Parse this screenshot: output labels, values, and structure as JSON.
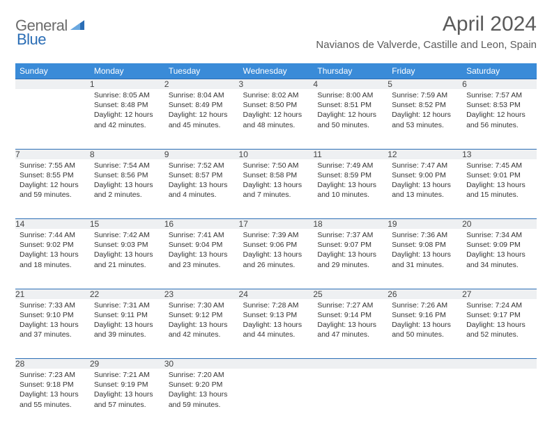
{
  "brand": {
    "word1": "General",
    "word2": "Blue"
  },
  "title": "April 2024",
  "location": "Navianos de Valverde, Castille and Leon, Spain",
  "colors": {
    "header_bg": "#3a8bd8",
    "border": "#2a6db5",
    "daynum_bg": "#eef0f2",
    "text": "#333333",
    "title_text": "#5a5a5a"
  },
  "weekdays": [
    "Sunday",
    "Monday",
    "Tuesday",
    "Wednesday",
    "Thursday",
    "Friday",
    "Saturday"
  ],
  "weeks": [
    [
      null,
      {
        "n": "1",
        "sr": "8:05 AM",
        "ss": "8:48 PM",
        "dl": "12 hours and 42 minutes."
      },
      {
        "n": "2",
        "sr": "8:04 AM",
        "ss": "8:49 PM",
        "dl": "12 hours and 45 minutes."
      },
      {
        "n": "3",
        "sr": "8:02 AM",
        "ss": "8:50 PM",
        "dl": "12 hours and 48 minutes."
      },
      {
        "n": "4",
        "sr": "8:00 AM",
        "ss": "8:51 PM",
        "dl": "12 hours and 50 minutes."
      },
      {
        "n": "5",
        "sr": "7:59 AM",
        "ss": "8:52 PM",
        "dl": "12 hours and 53 minutes."
      },
      {
        "n": "6",
        "sr": "7:57 AM",
        "ss": "8:53 PM",
        "dl": "12 hours and 56 minutes."
      }
    ],
    [
      {
        "n": "7",
        "sr": "7:55 AM",
        "ss": "8:55 PM",
        "dl": "12 hours and 59 minutes."
      },
      {
        "n": "8",
        "sr": "7:54 AM",
        "ss": "8:56 PM",
        "dl": "13 hours and 2 minutes."
      },
      {
        "n": "9",
        "sr": "7:52 AM",
        "ss": "8:57 PM",
        "dl": "13 hours and 4 minutes."
      },
      {
        "n": "10",
        "sr": "7:50 AM",
        "ss": "8:58 PM",
        "dl": "13 hours and 7 minutes."
      },
      {
        "n": "11",
        "sr": "7:49 AM",
        "ss": "8:59 PM",
        "dl": "13 hours and 10 minutes."
      },
      {
        "n": "12",
        "sr": "7:47 AM",
        "ss": "9:00 PM",
        "dl": "13 hours and 13 minutes."
      },
      {
        "n": "13",
        "sr": "7:45 AM",
        "ss": "9:01 PM",
        "dl": "13 hours and 15 minutes."
      }
    ],
    [
      {
        "n": "14",
        "sr": "7:44 AM",
        "ss": "9:02 PM",
        "dl": "13 hours and 18 minutes."
      },
      {
        "n": "15",
        "sr": "7:42 AM",
        "ss": "9:03 PM",
        "dl": "13 hours and 21 minutes."
      },
      {
        "n": "16",
        "sr": "7:41 AM",
        "ss": "9:04 PM",
        "dl": "13 hours and 23 minutes."
      },
      {
        "n": "17",
        "sr": "7:39 AM",
        "ss": "9:06 PM",
        "dl": "13 hours and 26 minutes."
      },
      {
        "n": "18",
        "sr": "7:37 AM",
        "ss": "9:07 PM",
        "dl": "13 hours and 29 minutes."
      },
      {
        "n": "19",
        "sr": "7:36 AM",
        "ss": "9:08 PM",
        "dl": "13 hours and 31 minutes."
      },
      {
        "n": "20",
        "sr": "7:34 AM",
        "ss": "9:09 PM",
        "dl": "13 hours and 34 minutes."
      }
    ],
    [
      {
        "n": "21",
        "sr": "7:33 AM",
        "ss": "9:10 PM",
        "dl": "13 hours and 37 minutes."
      },
      {
        "n": "22",
        "sr": "7:31 AM",
        "ss": "9:11 PM",
        "dl": "13 hours and 39 minutes."
      },
      {
        "n": "23",
        "sr": "7:30 AM",
        "ss": "9:12 PM",
        "dl": "13 hours and 42 minutes."
      },
      {
        "n": "24",
        "sr": "7:28 AM",
        "ss": "9:13 PM",
        "dl": "13 hours and 44 minutes."
      },
      {
        "n": "25",
        "sr": "7:27 AM",
        "ss": "9:14 PM",
        "dl": "13 hours and 47 minutes."
      },
      {
        "n": "26",
        "sr": "7:26 AM",
        "ss": "9:16 PM",
        "dl": "13 hours and 50 minutes."
      },
      {
        "n": "27",
        "sr": "7:24 AM",
        "ss": "9:17 PM",
        "dl": "13 hours and 52 minutes."
      }
    ],
    [
      {
        "n": "28",
        "sr": "7:23 AM",
        "ss": "9:18 PM",
        "dl": "13 hours and 55 minutes."
      },
      {
        "n": "29",
        "sr": "7:21 AM",
        "ss": "9:19 PM",
        "dl": "13 hours and 57 minutes."
      },
      {
        "n": "30",
        "sr": "7:20 AM",
        "ss": "9:20 PM",
        "dl": "13 hours and 59 minutes."
      },
      null,
      null,
      null,
      null
    ]
  ],
  "labels": {
    "sunrise": "Sunrise:",
    "sunset": "Sunset:",
    "daylight": "Daylight:"
  }
}
